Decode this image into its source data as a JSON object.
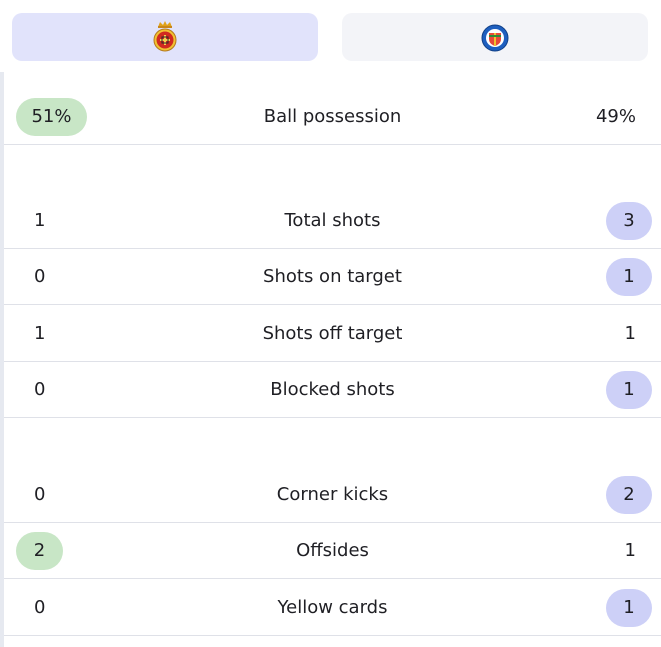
{
  "teams": {
    "home": {
      "crest_icon": "mallorca-crest-icon",
      "color": "#c8e6c6"
    },
    "away": {
      "crest_icon": "getafe-crest-icon",
      "color": "#cdd0f7"
    }
  },
  "stats": [
    {
      "label": "Ball possession",
      "home": "51%",
      "away": "49%",
      "leader": "home"
    },
    {
      "label": "Total shots",
      "home": "1",
      "away": "3",
      "leader": "away"
    },
    {
      "label": "Shots on target",
      "home": "0",
      "away": "1",
      "leader": "away"
    },
    {
      "label": "Shots off target",
      "home": "1",
      "away": "1",
      "leader": "none"
    },
    {
      "label": "Blocked shots",
      "home": "0",
      "away": "1",
      "leader": "away"
    },
    {
      "label": "Corner kicks",
      "home": "0",
      "away": "2",
      "leader": "away"
    },
    {
      "label": "Offsides",
      "home": "2",
      "away": "1",
      "leader": "home"
    },
    {
      "label": "Yellow cards",
      "home": "0",
      "away": "1",
      "leader": "away"
    }
  ]
}
